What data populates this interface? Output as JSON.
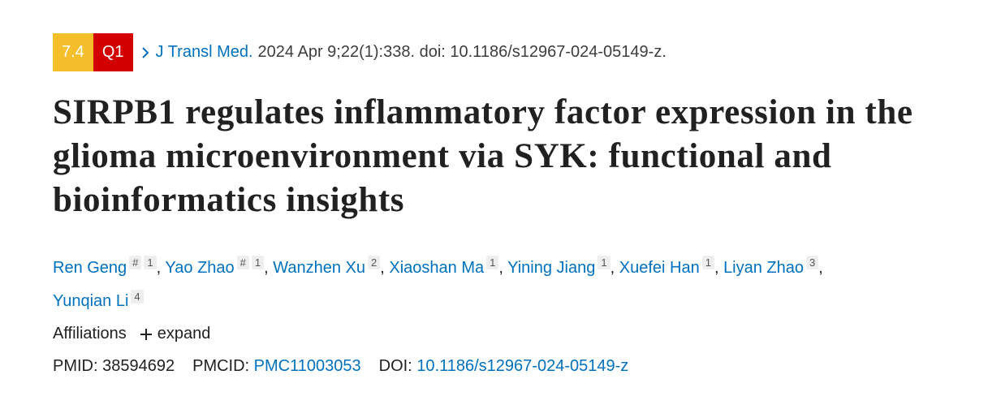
{
  "badges": {
    "impact_factor": "7.4",
    "quartile": "Q1"
  },
  "citation": {
    "journal": "J Transl Med.",
    "details": "2024 Apr 9;22(1):338. doi: 10.1186/s12967-024-05149-z."
  },
  "title": "SIRPB1 regulates inflammatory factor expression in the glioma microenvironment via SYK: functional and bioinformatics insights",
  "authors": [
    {
      "name": "Ren Geng",
      "equal": "#",
      "affiliation": "1"
    },
    {
      "name": "Yao Zhao",
      "equal": "#",
      "affiliation": "1"
    },
    {
      "name": "Wanzhen Xu",
      "affiliation": "2"
    },
    {
      "name": "Xiaoshan Ma",
      "affiliation": "1"
    },
    {
      "name": "Yining Jiang",
      "affiliation": "1"
    },
    {
      "name": "Xuefei Han",
      "affiliation": "1"
    },
    {
      "name": "Liyan Zhao",
      "affiliation": "3"
    },
    {
      "name": "Yunqian Li",
      "affiliation": "4"
    }
  ],
  "author_separator": ",",
  "affiliations": {
    "label": "Affiliations",
    "toggle": "expand"
  },
  "identifiers": [
    {
      "label": "PMID:",
      "value": "38594692"
    },
    {
      "label": "PMCID:",
      "value": "PMC11003053"
    },
    {
      "label": "DOI:",
      "value": "10.1186/s12967-024-05149-z"
    }
  ]
}
